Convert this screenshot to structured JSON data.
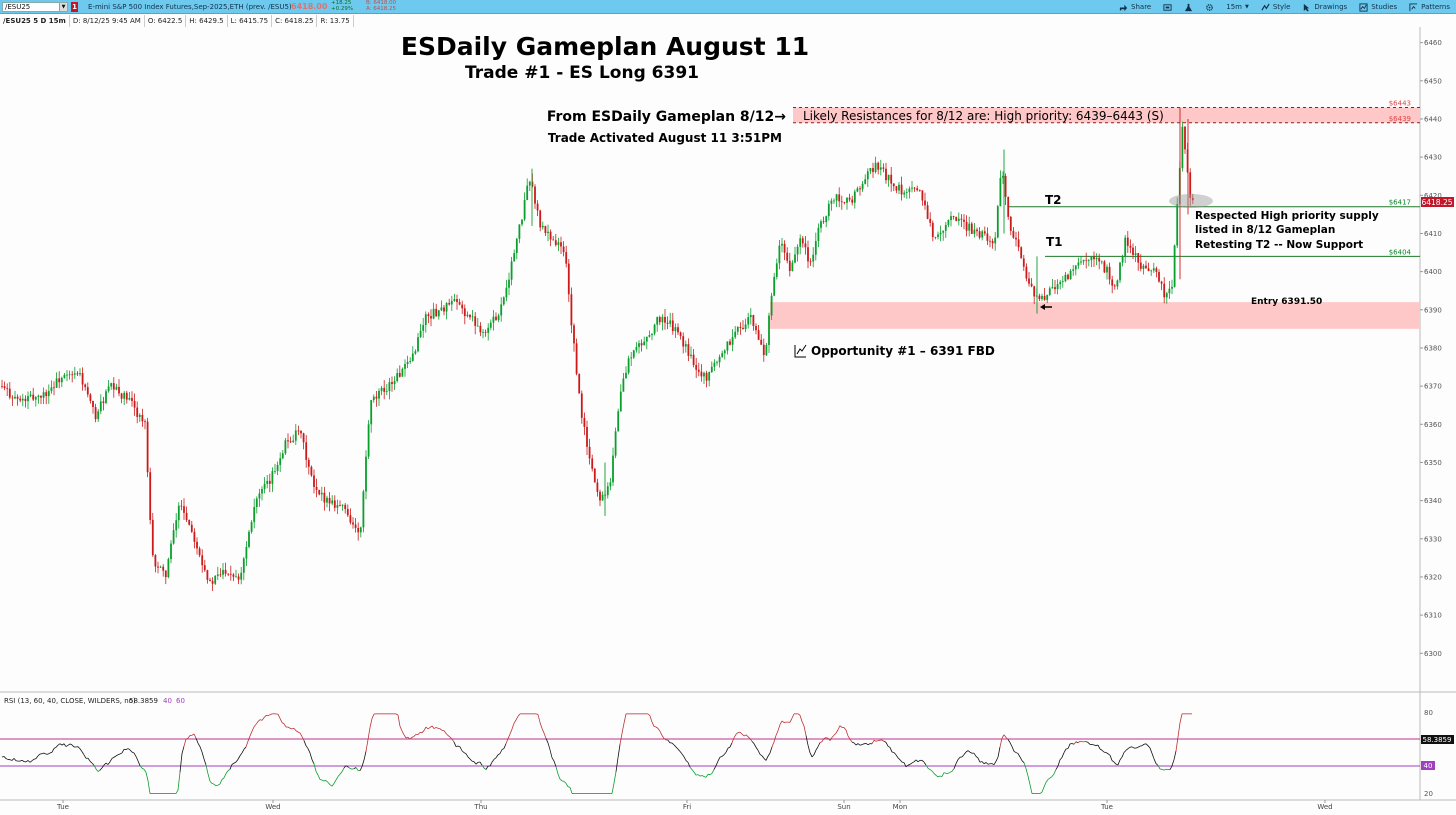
{
  "toolbar": {
    "symbol": "/ESU25",
    "alert_badge": "1",
    "description": "E-mini S&P 500 Index Futures,Sep-2025,ETH (prev. /ESU5)",
    "last_price": "6418.00",
    "change": "+18.25",
    "change_pct": "+0.29%",
    "bid": "B: 6418.00",
    "ask": "A: 6418.25",
    "buttons": [
      {
        "label": "Share",
        "icon": "share-icon"
      },
      {
        "label": "",
        "icon": "screenshot-icon"
      },
      {
        "label": "",
        "icon": "flask-icon"
      },
      {
        "label": "",
        "icon": "gear-icon"
      },
      {
        "label": "15m",
        "icon": ""
      },
      {
        "label": "Style",
        "icon": "style-icon"
      },
      {
        "label": "Drawings",
        "icon": "cursor-icon"
      },
      {
        "label": "Studies",
        "icon": "studies-icon"
      },
      {
        "label": "Patterns",
        "icon": "patterns-icon"
      }
    ]
  },
  "infobar": {
    "symbol": "/ESU25 5 D 15m",
    "date": "D: 8/12/25 9:45 AM",
    "open": "O: 6422.5",
    "high": "H: 6429.5",
    "low": "L: 6415.75",
    "close": "C: 6418.25",
    "range": "R: 13.75"
  },
  "annotations": {
    "title": "ESDaily Gameplan August 11",
    "subtitle": "Trade #1 - ES Long 6391",
    "from_label": "From ESDaily Gameplan 8/12→",
    "activated": "Trade Activated August 11 3:51PM",
    "resistance_label": "Likely Resistances for 8/12 are: High priority: 6439–6443 (S)",
    "t2": "T2",
    "t1": "T1",
    "note_lines": [
      "Respected High priority supply",
      "listed in 8/12 Gameplan",
      "Retesting T2 -- Now Support"
    ],
    "entry": "Entry 6391.50",
    "opportunity": "Opportunity #1 – 6391 FBD"
  },
  "price_axis": {
    "ticks": [
      "6460",
      "6450",
      "6440",
      "6430",
      "6420",
      "6410",
      "6400",
      "6390",
      "6380",
      "6370",
      "6360",
      "6350",
      "6340",
      "6330",
      "6320",
      "6310",
      "6300"
    ],
    "last_tag": "6418.25",
    "level_tags": [
      {
        "price": 6443,
        "label": "$6443",
        "color": "#e04848"
      },
      {
        "price": 6439,
        "label": "$6439",
        "color": "#e04848"
      },
      {
        "price": 6417,
        "label": "$6417",
        "color": "#0a8a2a"
      },
      {
        "price": 6404,
        "label": "$6404",
        "color": "#0a8a2a"
      }
    ]
  },
  "rsi": {
    "label": "RSI (13, 60, 40, CLOSE, WILDERS, no)",
    "value": "58.3859",
    "level_low": "40",
    "level_high": "60",
    "axis_ticks": [
      "80",
      "20"
    ]
  },
  "time_axis": [
    "Tue",
    "Wed",
    "Thu",
    "Fri",
    "Sun",
    "Mon",
    "Tue",
    "Wed"
  ],
  "colors": {
    "up": "#0a9e2c",
    "down": "#cc1a1a",
    "resistance_zone": "#ffc8c8",
    "level_line": "#1f7a2a",
    "rsi_high": "#c0308f",
    "rsi_low": "#a040c0",
    "topbar": "#6ec9ee"
  },
  "chart_data": {
    "type": "candlestick",
    "price_range": [
      6293,
      6462
    ],
    "levels": {
      "resistance_zone": [
        6439,
        6443
      ],
      "support_zone": [
        6385,
        6392
      ],
      "t2": 6417,
      "t1": 6404,
      "entry": 6391.5
    },
    "close_path": [
      [
        0,
        6370
      ],
      [
        20,
        6366
      ],
      [
        45,
        6368
      ],
      [
        60,
        6372
      ],
      [
        80,
        6373
      ],
      [
        95,
        6362
      ],
      [
        110,
        6370
      ],
      [
        130,
        6366
      ],
      [
        145,
        6360
      ],
      [
        152,
        6325
      ],
      [
        165,
        6320
      ],
      [
        180,
        6340
      ],
      [
        195,
        6330
      ],
      [
        210,
        6318
      ],
      [
        225,
        6322
      ],
      [
        240,
        6320
      ],
      [
        255,
        6340
      ],
      [
        270,
        6345
      ],
      [
        285,
        6355
      ],
      [
        300,
        6358
      ],
      [
        315,
        6342
      ],
      [
        330,
        6340
      ],
      [
        345,
        6338
      ],
      [
        360,
        6330
      ],
      [
        370,
        6365
      ],
      [
        380,
        6368
      ],
      [
        395,
        6372
      ],
      [
        410,
        6376
      ],
      [
        425,
        6388
      ],
      [
        440,
        6390
      ],
      [
        455,
        6392
      ],
      [
        470,
        6388
      ],
      [
        485,
        6384
      ],
      [
        500,
        6390
      ],
      [
        510,
        6400
      ],
      [
        520,
        6412
      ],
      [
        530,
        6425
      ],
      [
        540,
        6412
      ],
      [
        555,
        6408
      ],
      [
        565,
        6405
      ],
      [
        572,
        6385
      ],
      [
        580,
        6365
      ],
      [
        590,
        6350
      ],
      [
        600,
        6340
      ],
      [
        610,
        6345
      ],
      [
        620,
        6368
      ],
      [
        630,
        6378
      ],
      [
        645,
        6382
      ],
      [
        660,
        6388
      ],
      [
        675,
        6385
      ],
      [
        690,
        6378
      ],
      [
        705,
        6372
      ],
      [
        720,
        6378
      ],
      [
        735,
        6384
      ],
      [
        750,
        6388
      ],
      [
        765,
        6378
      ],
      [
        770,
        6390
      ],
      [
        780,
        6408
      ],
      [
        790,
        6400
      ],
      [
        800,
        6410
      ],
      [
        810,
        6402
      ],
      [
        820,
        6412
      ],
      [
        835,
        6420
      ],
      [
        850,
        6418
      ],
      [
        860,
        6422
      ],
      [
        875,
        6428
      ],
      [
        890,
        6424
      ],
      [
        905,
        6420
      ],
      [
        920,
        6422
      ],
      [
        935,
        6408
      ],
      [
        950,
        6415
      ],
      [
        965,
        6412
      ],
      [
        980,
        6410
      ],
      [
        995,
        6408
      ],
      [
        1002,
        6428
      ],
      [
        1010,
        6412
      ],
      [
        1020,
        6405
      ],
      [
        1030,
        6396
      ],
      [
        1040,
        6392
      ],
      [
        1050,
        6395
      ],
      [
        1065,
        6398
      ],
      [
        1080,
        6402
      ],
      [
        1095,
        6403
      ],
      [
        1108,
        6400
      ],
      [
        1115,
        6395
      ],
      [
        1125,
        6408
      ],
      [
        1140,
        6402
      ],
      [
        1155,
        6400
      ],
      [
        1165,
        6394
      ],
      [
        1172,
        6396
      ],
      [
        1178,
        6420
      ],
      [
        1182,
        6438
      ],
      [
        1186,
        6430
      ],
      [
        1190,
        6420
      ],
      [
        1193,
        6418
      ]
    ]
  }
}
